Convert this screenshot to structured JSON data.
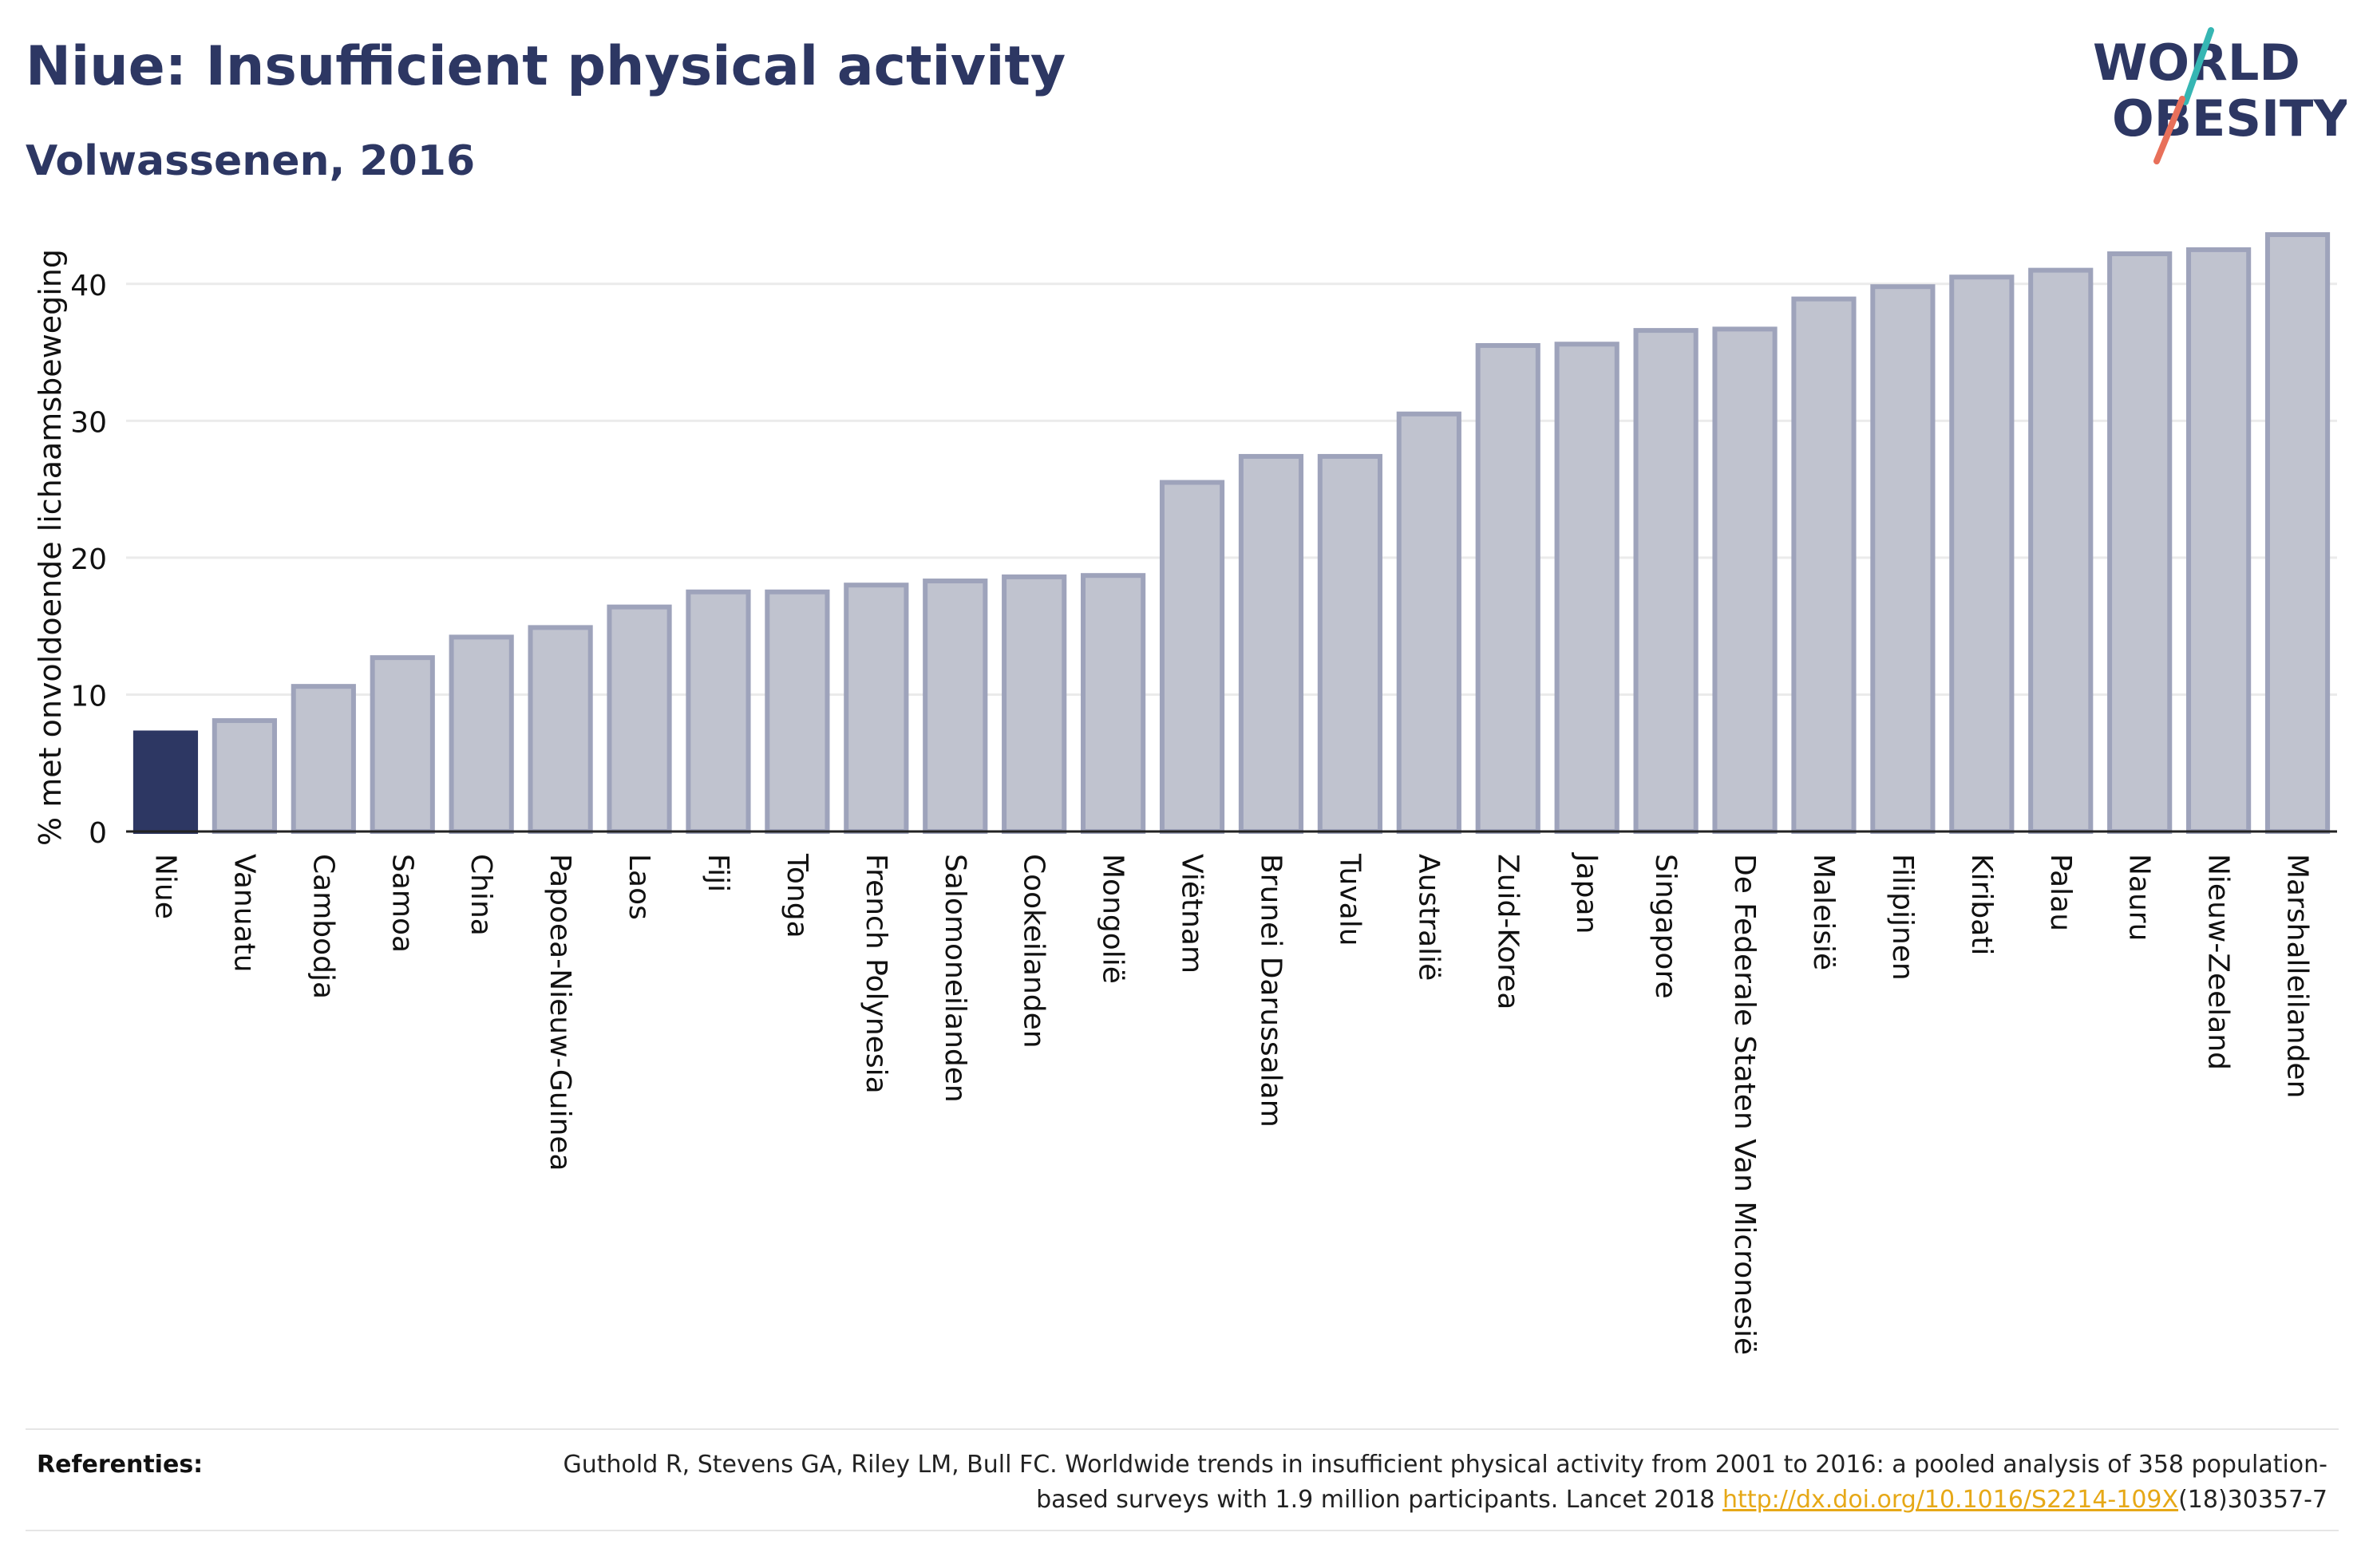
{
  "header": {
    "title": "Niue: Insufficient physical activity",
    "subtitle": "Volwassenen, 2016"
  },
  "logo": {
    "line1": "WORLD",
    "line2": "OBESITY"
  },
  "colors": {
    "highlight_bar": "#2d3763",
    "other_bar_fill": "#c0c3cf",
    "other_bar_stroke": "#9ea3bb",
    "logo_text": "#2d3763",
    "logo_teal": "#36b6b3",
    "logo_coral": "#e8705a",
    "link": "#e6a817"
  },
  "chart_data": {
    "type": "bar",
    "title": "Niue: Insufficient physical activity",
    "subtitle": "Volwassenen, 2016",
    "ylabel": "% met onvoldoende lichaamsbeweging",
    "xlabel": "",
    "ylim": [
      0,
      45
    ],
    "yticks": [
      0,
      10,
      20,
      30,
      40
    ],
    "grid": true,
    "highlight": "Niue",
    "categories": [
      "Niue",
      "Vanuatu",
      "Cambodja",
      "Samoa",
      "China",
      "Papoea-Nieuw-Guinea",
      "Laos",
      "Fiji",
      "Tonga",
      "French Polynesia",
      "Salomoneilanden",
      "Cookeilanden",
      "Mongolië",
      "Viëtnam",
      "Brunei Darussalam",
      "Tuvalu",
      "Australië",
      "Zuid-Korea",
      "Japan",
      "Singapore",
      "De Federale Staten Van Micronesië",
      "Maleisië",
      "Filipijnen",
      "Kiribati",
      "Palau",
      "Nauru",
      "Nieuw-Zeeland",
      "Marshalleilanden"
    ],
    "values": [
      7.2,
      8.1,
      10.6,
      12.7,
      14.2,
      14.9,
      16.4,
      17.5,
      17.5,
      18.0,
      18.3,
      18.6,
      18.7,
      25.5,
      27.4,
      27.4,
      30.5,
      35.5,
      35.6,
      36.6,
      36.7,
      38.9,
      39.8,
      40.5,
      41.0,
      42.2,
      42.5,
      43.6
    ]
  },
  "references": {
    "label": "Referenties:",
    "text_before": "Guthold R, Stevens GA, Riley LM, Bull FC. Worldwide trends in insufficient physical activity from 2001 to 2016: a pooled analysis of 358 population-based surveys with 1.9 million participants. Lancet 2018 ",
    "link_text": "http://dx.doi.org/10.1016/S2214-109X",
    "text_after": "(18)30357-7"
  }
}
